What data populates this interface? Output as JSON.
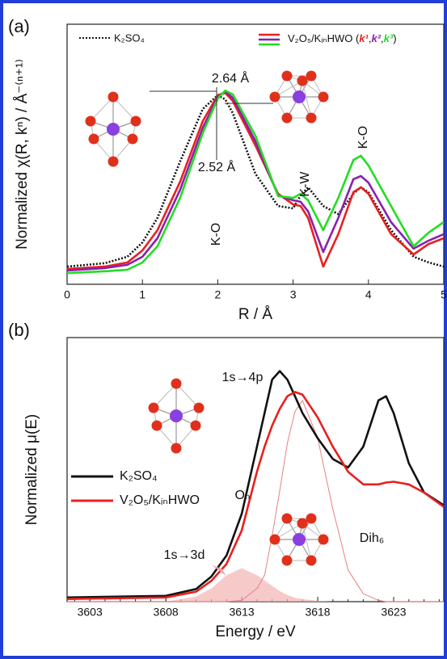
{
  "chart_data": [
    {
      "type": "line",
      "panel_label": "(a)",
      "x_label": "R / Å",
      "y_label": "Normalized χ(R, kⁿ) / Å⁻⁽ⁿ⁺¹⁾",
      "x": [
        0,
        0.5,
        0.8,
        1.0,
        1.2,
        1.5,
        1.8,
        2.0,
        2.1,
        2.2,
        2.5,
        2.8,
        3.0,
        3.1,
        3.2,
        3.4,
        3.6,
        3.8,
        3.9,
        4.0,
        4.3,
        4.6,
        4.8,
        5.0
      ],
      "series": [
        {
          "name": "K₂SO₄",
          "color": "#111111",
          "dash": true,
          "values": [
            0.068,
            0.081,
            0.106,
            0.161,
            0.255,
            0.472,
            0.674,
            0.727,
            0.711,
            0.658,
            0.425,
            0.301,
            0.292,
            0.342,
            0.373,
            0.301,
            0.27,
            0.348,
            0.373,
            0.354,
            0.208,
            0.106,
            0.084,
            0.068
          ]
        },
        {
          "name": "k¹",
          "color": "#e8201e",
          "values": [
            0.059,
            0.068,
            0.084,
            0.13,
            0.208,
            0.394,
            0.627,
            0.727,
            0.736,
            0.705,
            0.534,
            0.348,
            0.307,
            0.301,
            0.255,
            0.068,
            0.193,
            0.354,
            0.373,
            0.348,
            0.193,
            0.115,
            0.155,
            0.177
          ]
        },
        {
          "name": "k²",
          "color": "#8a1fb0",
          "values": [
            0.053,
            0.062,
            0.075,
            0.106,
            0.177,
            0.363,
            0.602,
            0.72,
            0.742,
            0.717,
            0.55,
            0.342,
            0.323,
            0.317,
            0.28,
            0.124,
            0.255,
            0.404,
            0.416,
            0.391,
            0.239,
            0.137,
            0.168,
            0.193
          ]
        },
        {
          "name": "k³",
          "color": "#22dd22",
          "values": [
            0.043,
            0.05,
            0.056,
            0.084,
            0.146,
            0.332,
            0.581,
            0.714,
            0.745,
            0.73,
            0.571,
            0.339,
            0.332,
            0.348,
            0.323,
            0.208,
            0.332,
            0.478,
            0.494,
            0.457,
            0.301,
            0.146,
            0.199,
            0.239
          ]
        }
      ],
      "legend_label": "V₂O₅/KᵢₙHWO (",
      "legend_separator": ",",
      "legend_close": ")",
      "annotations": [
        "2.64 Å",
        "2.52 Å",
        "K-O",
        "K-W",
        "K-O"
      ],
      "xlim": [
        0,
        5
      ],
      "xticks": [
        0,
        1,
        2,
        3,
        4,
        5
      ],
      "ylim": [
        0,
        1
      ]
    },
    {
      "type": "line",
      "panel_label": "(b)",
      "x_label": "Energy / eV",
      "y_label": "Normalized μ(E)",
      "x": [
        3601.5,
        3608,
        3610,
        3611,
        3612,
        3613,
        3614,
        3614.5,
        3615,
        3615.5,
        3616,
        3616.5,
        3617,
        3618,
        3619,
        3620,
        3621,
        3622,
        3622.5,
        3623,
        3624,
        3625,
        3626.3
      ],
      "series": [
        {
          "color": "#f4b4b4",
          "fill": true,
          "values": [
            0,
            0,
            0.02,
            0.05,
            0.1,
            0.127,
            0.1,
            0.08,
            0.06,
            0.04,
            0.025,
            0.015,
            0.01,
            0.003,
            0,
            0,
            0,
            0,
            0,
            0,
            0,
            0,
            0
          ]
        },
        {
          "color": "#e88080",
          "values": [
            0,
            0,
            0,
            0,
            0,
            0.005,
            0.05,
            0.1,
            0.25,
            0.42,
            0.6,
            0.72,
            0.762,
            0.62,
            0.35,
            0.12,
            0.03,
            0.005,
            0,
            0,
            0,
            0,
            0
          ]
        },
        {
          "name": "K₂SO₄",
          "color": "#111111",
          "values": [
            0.016,
            0.022,
            0.048,
            0.095,
            0.175,
            0.333,
            0.587,
            0.714,
            0.841,
            0.873,
            0.841,
            0.778,
            0.714,
            0.619,
            0.54,
            0.508,
            0.587,
            0.762,
            0.778,
            0.714,
            0.524,
            0.413,
            0.365
          ]
        },
        {
          "name": "V₂O₅/KᵢₙHWO",
          "color": "#e8201e",
          "values": [
            0.01,
            0.016,
            0.038,
            0.079,
            0.143,
            0.27,
            0.492,
            0.587,
            0.667,
            0.73,
            0.778,
            0.794,
            0.784,
            0.698,
            0.587,
            0.492,
            0.444,
            0.444,
            0.451,
            0.454,
            0.444,
            0.413,
            0.359
          ]
        }
      ],
      "annotations": [
        "1s→4p",
        "1s→3d",
        "Oₕ",
        "Dih₆"
      ],
      "xlim": [
        3601.5,
        3626.3
      ],
      "xticks": [
        3603,
        3608,
        3613,
        3618,
        3623
      ],
      "ylim": [
        0,
        1
      ]
    }
  ]
}
